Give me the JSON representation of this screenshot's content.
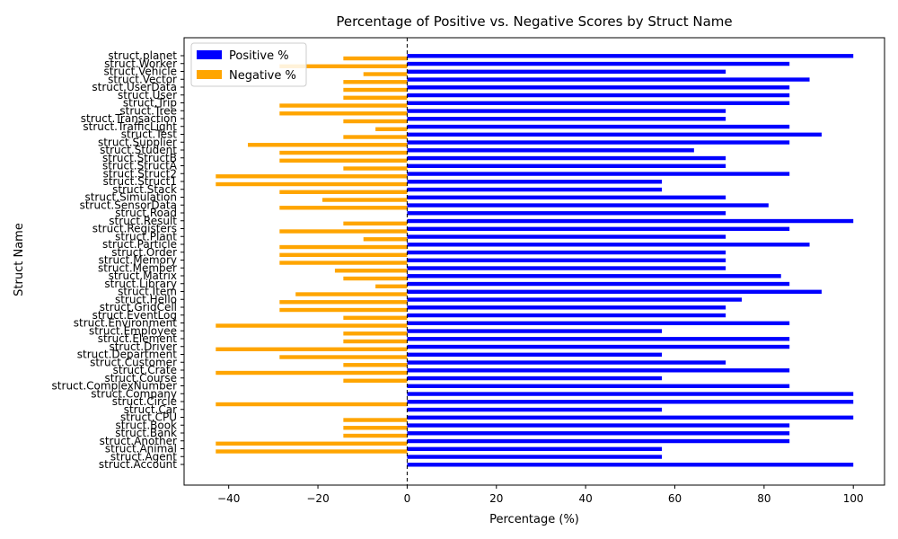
{
  "chart_data": {
    "type": "bar",
    "orientation": "horizontal",
    "title": "Percentage of Positive vs. Negative Scores by Struct Name",
    "xlabel": "Percentage (%)",
    "ylabel": "Struct Name",
    "xlim": [
      -50,
      107
    ],
    "xticks": [
      -40,
      -20,
      0,
      20,
      40,
      60,
      80,
      100
    ],
    "reference_line": {
      "x": 0,
      "style": "dashed"
    },
    "legend": {
      "placement": "top-left"
    },
    "categories": [
      "struct.Account",
      "struct.Agent",
      "struct.Animal",
      "struct.Another",
      "struct.Bank",
      "struct.Book",
      "struct.CPU",
      "struct.Car",
      "struct.Circle",
      "struct.Company",
      "struct.ComplexNumber",
      "struct.Course",
      "struct.Crate",
      "struct.Customer",
      "struct.Department",
      "struct.Driver",
      "struct.Element",
      "struct.Employee",
      "struct.Environment",
      "struct.EventLog",
      "struct.GridCell",
      "struct.Hello",
      "struct.Item",
      "struct.Library",
      "struct.Matrix",
      "struct.Member",
      "struct.Memory",
      "struct.Order",
      "struct.Particle",
      "struct.Plant",
      "struct.Registers",
      "struct.Result",
      "struct.Road",
      "struct.SensorData",
      "struct.Simulation",
      "struct.Stack",
      "struct.Struct1",
      "struct.Struct2",
      "struct.StructA",
      "struct.StructB",
      "struct.Student",
      "struct.Supplier",
      "struct.Test",
      "struct.TrafficLight",
      "struct.Transaction",
      "struct.Tree",
      "struct.Trip",
      "struct.User",
      "struct.UserData",
      "struct.Vector",
      "struct.Vehicle",
      "struct.Worker",
      "struct.planet"
    ],
    "series": [
      {
        "name": "Positive %",
        "color": "#0000ff",
        "values": [
          100,
          57.1,
          57.1,
          85.7,
          85.7,
          85.7,
          100,
          57.1,
          100,
          100,
          85.7,
          57.1,
          85.7,
          71.4,
          57.1,
          85.7,
          85.7,
          57.1,
          85.7,
          71.4,
          71.4,
          75,
          92.9,
          85.7,
          83.8,
          71.4,
          71.4,
          71.4,
          90.2,
          71.4,
          85.7,
          100,
          71.4,
          81,
          71.4,
          57.1,
          57.1,
          85.7,
          71.4,
          71.4,
          64.3,
          85.7,
          92.9,
          85.7,
          71.4,
          71.4,
          85.7,
          85.7,
          85.7,
          90.2,
          71.4,
          85.7,
          100
        ]
      },
      {
        "name": "Negative %",
        "color": "#ffa500",
        "values": [
          0,
          -42.9,
          -42.9,
          -14.3,
          -14.3,
          -14.3,
          0,
          -42.9,
          0,
          0,
          -14.3,
          -42.9,
          -14.3,
          -28.6,
          -42.9,
          -14.3,
          -14.3,
          -42.9,
          -14.3,
          -28.6,
          -28.6,
          -25,
          -7.1,
          -14.3,
          -16.2,
          -28.6,
          -28.6,
          -28.6,
          -9.8,
          -28.6,
          -14.3,
          0,
          -28.6,
          -19,
          -28.6,
          -42.9,
          -42.9,
          -14.3,
          -28.6,
          -28.6,
          -35.7,
          -14.3,
          -7.1,
          -14.3,
          -28.6,
          -28.6,
          -14.3,
          -14.3,
          -14.3,
          -9.8,
          -28.6,
          -14.3,
          0
        ]
      }
    ]
  }
}
